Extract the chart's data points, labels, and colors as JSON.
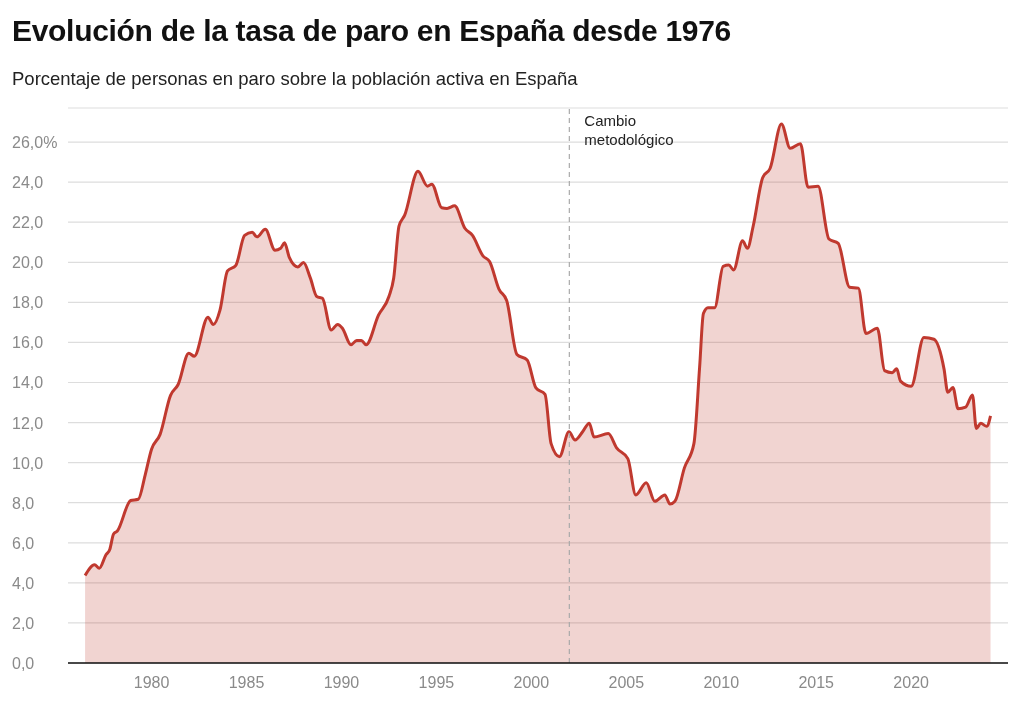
{
  "chart_data": {
    "type": "area",
    "title": "Evolución de la tasa de paro en España desde 1976",
    "subtitle": "Porcentaje de personas en paro sobre la población activa en España",
    "x": [
      1976.5,
      1977.0,
      1977.25,
      1977.6,
      1977.8,
      1978.0,
      1978.2,
      1978.9,
      1979.3,
      1979.66,
      1980.0,
      1980.45,
      1981.0,
      1981.4,
      1981.96,
      1982.25,
      1982.97,
      1983.25,
      1983.6,
      1984.0,
      1984.44,
      1984.9,
      1985.3,
      1985.55,
      1985.99,
      1986.5,
      1986.8,
      1987.0,
      1987.26,
      1987.7,
      1988.0,
      1988.36,
      1988.7,
      1989.0,
      1989.46,
      1989.8,
      1990.05,
      1990.5,
      1990.8,
      1991.05,
      1991.3,
      1991.95,
      1992.5,
      1992.75,
      1993.03,
      1993.33,
      1994.03,
      1994.53,
      1994.76,
      1995.28,
      1995.56,
      1995.96,
      1996.5,
      1996.9,
      1997.46,
      1997.8,
      1998.3,
      1998.7,
      1999.24,
      1999.78,
      2000.24,
      2000.72,
      2001.04,
      2001.48,
      2001.98,
      2002.3,
      2002.7,
      2003.05,
      2003.3,
      2004.05,
      2004.5,
      2005.08,
      2005.5,
      2006.05,
      2006.5,
      2007.03,
      2007.3,
      2007.56,
      2008.06,
      2008.56,
      2008.86,
      2009.06,
      2009.3,
      2009.65,
      2010.1,
      2010.4,
      2010.65,
      2011.12,
      2011.38,
      2011.68,
      2012.18,
      2012.57,
      2013.17,
      2013.63,
      2014.17,
      2014.57,
      2015.1,
      2015.67,
      2016.16,
      2016.76,
      2017.22,
      2017.62,
      2018.22,
      2018.6,
      2019.0,
      2019.24,
      2019.44,
      2020.0,
      2020.67,
      2021.2,
      2021.73,
      2021.93,
      2022.2,
      2022.47,
      2022.87,
      2023.23,
      2023.43,
      2023.67,
      2023.98,
      2024.18
    ],
    "series": [
      {
        "color": "#c0392f",
        "values": [
          4.37,
          4.9,
          4.73,
          5.4,
          5.67,
          6.44,
          6.59,
          8.11,
          8.17,
          9.37,
          10.67,
          11.41,
          13.36,
          13.9,
          15.46,
          15.31,
          17.26,
          16.89,
          17.6,
          19.57,
          19.85,
          21.34,
          21.5,
          21.27,
          21.65,
          20.6,
          20.7,
          20.97,
          20.23,
          19.77,
          19.99,
          19.22,
          18.29,
          18.2,
          16.62,
          16.9,
          16.71,
          15.88,
          16.1,
          16.1,
          15.88,
          17.36,
          18.29,
          19.2,
          21.8,
          22.35,
          24.54,
          23.8,
          23.9,
          22.72,
          22.69,
          22.82,
          21.7,
          21.34,
          20.31,
          20.04,
          18.65,
          18.09,
          15.4,
          15.12,
          13.73,
          13.41,
          10.95,
          10.3,
          11.54,
          11.13,
          11.54,
          11.97,
          11.28,
          11.45,
          10.72,
          10.2,
          8.39,
          9.0,
          8.07,
          8.39,
          7.93,
          8.07,
          9.74,
          10.95,
          14.75,
          17.44,
          17.73,
          17.73,
          19.8,
          19.86,
          19.62,
          21.07,
          20.7,
          21.8,
          24.22,
          24.68,
          26.9,
          25.69,
          25.92,
          23.75,
          23.79,
          21.16,
          20.94,
          18.75,
          18.71,
          16.44,
          16.71,
          14.59,
          14.49,
          14.68,
          14.07,
          13.81,
          16.25,
          16.16,
          14.68,
          13.51,
          13.75,
          12.69,
          12.77,
          13.38,
          11.71,
          11.96,
          11.81,
          12.33
        ]
      }
    ],
    "xlim": [
      1975.6,
      2025.1
    ],
    "xticks": [
      1980,
      1985,
      1990,
      1995,
      2000,
      2005,
      2010,
      2015,
      2020
    ],
    "ylim": [
      0,
      27.7
    ],
    "yticks": [
      {
        "value": 0,
        "label": "0,0"
      },
      {
        "value": 2,
        "label": "2,0"
      },
      {
        "value": 4,
        "label": "4,0"
      },
      {
        "value": 6,
        "label": "6,0"
      },
      {
        "value": 8,
        "label": "8,0"
      },
      {
        "value": 10,
        "label": "10,0"
      },
      {
        "value": 12,
        "label": "12,0"
      },
      {
        "value": 14,
        "label": "14,0"
      },
      {
        "value": 16,
        "label": "16,0"
      },
      {
        "value": 18,
        "label": "18,0"
      },
      {
        "value": 20,
        "label": "20,0"
      },
      {
        "value": 22,
        "label": "22,0"
      },
      {
        "value": 24,
        "label": "24,0"
      },
      {
        "value": 26,
        "label": "26,0%"
      }
    ],
    "grid": "y",
    "marker": "none",
    "line_style": "solid",
    "ref_lines": [
      {
        "axis": "x",
        "value": 2002,
        "label": "Cambio metodológico",
        "color": "#aaaaaa",
        "line_style": "dashed"
      }
    ]
  }
}
